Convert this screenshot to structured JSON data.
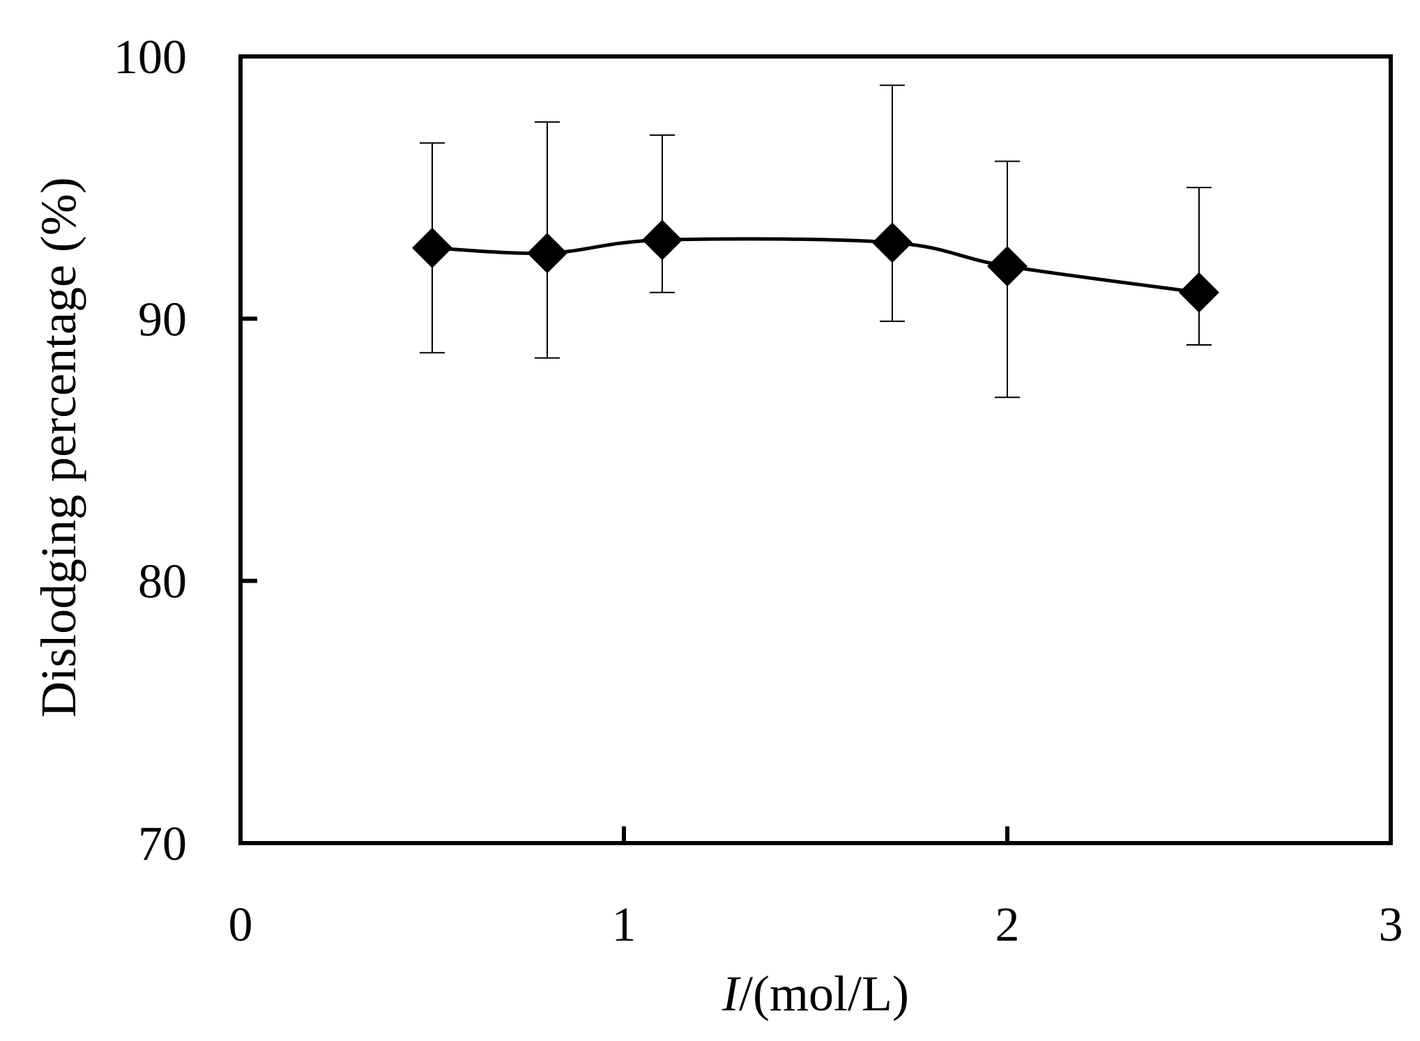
{
  "chart_data": {
    "type": "line",
    "xlabel_italic": "I",
    "xlabel_rest": "/(mol/L)",
    "ylabel": "Dislodging percentage (%)",
    "xlim": [
      0,
      3
    ],
    "ylim": [
      70,
      100
    ],
    "x_ticks": [
      0,
      1,
      2,
      3
    ],
    "x_tick_labels": [
      "0",
      "1",
      "2",
      "3"
    ],
    "y_ticks": [
      70,
      80,
      90,
      100
    ],
    "y_tick_labels": [
      "70",
      "80",
      "90",
      "100"
    ],
    "grid": false,
    "legend": "none",
    "series": [
      {
        "marker": "diamond",
        "color": "#000000",
        "smooth": true,
        "x": [
          0.5,
          0.8,
          1.1,
          1.7,
          2.0,
          2.5
        ],
        "y": [
          92.7,
          92.5,
          93.0,
          92.9,
          92.0,
          91.0
        ],
        "y_err_upper": [
          96.7,
          97.5,
          97.0,
          98.9,
          96.0,
          95.0
        ],
        "y_err_lower": [
          88.7,
          88.5,
          91.0,
          89.9,
          87.0,
          89.0
        ]
      }
    ]
  }
}
